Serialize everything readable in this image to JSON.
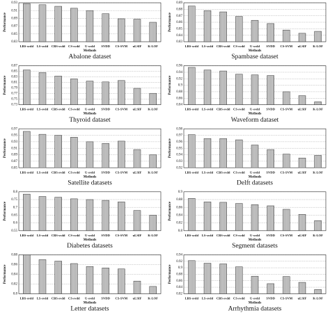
{
  "chart_data": [
    {
      "type": "bar",
      "title": "Abalone dataset",
      "xlabel": "Methods",
      "ylabel": "Performance",
      "color": "#b0b0b0",
      "categories": [
        "LBS-svdd",
        "LS-svdd",
        "CBS-svdd",
        "CS-svdd",
        "U-svdd",
        "SVDD",
        "CS-SVM",
        "uLSIF",
        "K-LOF"
      ],
      "values": [
        0.928,
        0.925,
        0.921,
        0.916,
        0.91,
        0.902,
        0.889,
        0.888,
        0.88
      ],
      "ylim": [
        0.83,
        0.93
      ],
      "yticks": [
        0.83,
        0.85,
        0.87,
        0.89,
        0.91,
        0.93
      ],
      "grid": true
    },
    {
      "type": "bar",
      "title": "Spambase dataset",
      "xlabel": "Methods",
      "ylabel": "Performance",
      "color": "#b0b0b0",
      "categories": [
        "LBS-svdd",
        "LS-svdd",
        "CBS-svdd",
        "CS-svdd",
        "U-svdd",
        "SVDD",
        "CS-SVM",
        "uLSIF",
        "K-LOF"
      ],
      "values": [
        0.885,
        0.878,
        0.876,
        0.869,
        0.863,
        0.858,
        0.848,
        0.843,
        0.846
      ],
      "ylim": [
        0.83,
        0.89
      ],
      "yticks": [
        0.83,
        0.84,
        0.85,
        0.86,
        0.87,
        0.88,
        0.89
      ],
      "grid": true
    },
    {
      "type": "bar",
      "title": "Thyroid dataset",
      "xlabel": "Methods",
      "ylabel": "Performance",
      "color": "#b0b0b0",
      "categories": [
        "LBS-svdd",
        "LS-svdd",
        "CBS-svdd",
        "CS-svdd",
        "U-svdd",
        "SVDD",
        "CS-SVM",
        "uLSIF",
        "K-LOF"
      ],
      "values": [
        0.855,
        0.846,
        0.833,
        0.823,
        0.815,
        0.812,
        0.817,
        0.789,
        0.771
      ],
      "ylim": [
        0.73,
        0.87
      ],
      "yticks": [
        0.73,
        0.75,
        0.77,
        0.79,
        0.81,
        0.83,
        0.85,
        0.87
      ],
      "grid": true
    },
    {
      "type": "bar",
      "title": "Waveform dataset",
      "xlabel": "Methods",
      "ylabel": "Performance",
      "color": "#b0b0b0",
      "categories": [
        "LBS-svdd",
        "LS-svdd",
        "CBS-svdd",
        "CS-svdd",
        "U-svdd",
        "SVDD",
        "CS-SVM",
        "uLSIF",
        "K-LOF"
      ],
      "values": [
        0.955,
        0.947,
        0.944,
        0.934,
        0.932,
        0.93,
        0.88,
        0.868,
        0.849
      ],
      "ylim": [
        0.84,
        0.96
      ],
      "yticks": [
        0.84,
        0.86,
        0.88,
        0.9,
        0.92,
        0.94,
        0.96
      ],
      "grid": true
    },
    {
      "type": "bar",
      "title": "Satellite datasets",
      "xlabel": "Methods",
      "ylabel": "Performance",
      "color": "#b0b0b0",
      "categories": [
        "LBS-svdd",
        "LS-svdd",
        "CBS-svdd",
        "CS-svdd",
        "U-svdd",
        "SVDD",
        "CS-SVM",
        "uLSIF",
        "K-LOF"
      ],
      "values": [
        0.962,
        0.953,
        0.95,
        0.944,
        0.93,
        0.925,
        0.932,
        0.906,
        0.89
      ],
      "ylim": [
        0.85,
        0.97
      ],
      "yticks": [
        0.85,
        0.87,
        0.89,
        0.91,
        0.93,
        0.95,
        0.97
      ],
      "grid": true
    },
    {
      "type": "bar",
      "title": "Delft datasets",
      "xlabel": "Methods",
      "ylabel": "Performance",
      "color": "#b0b0b0",
      "categories": [
        "LBS-svdd",
        "LS-svdd",
        "CBS-svdd",
        "CS-svdd",
        "U-svdd",
        "SVDD",
        "CS-SVM",
        "uLSIF",
        "K-LOF"
      ],
      "values": [
        0.971,
        0.965,
        0.965,
        0.963,
        0.955,
        0.948,
        0.941,
        0.935,
        0.939
      ],
      "ylim": [
        0.92,
        0.98
      ],
      "yticks": [
        0.92,
        0.93,
        0.94,
        0.95,
        0.96,
        0.97,
        0.98
      ],
      "grid": true
    },
    {
      "type": "bar",
      "title": "Diabetes datasets",
      "xlabel": "Methods",
      "ylabel": "Performance",
      "color": "#b0b0b0",
      "categories": [
        "LBS-svdd",
        "LS-svdd",
        "CBS-svdd",
        "CS-svdd",
        "U-svdd",
        "SVDD",
        "CS-SVM",
        "uLSIF",
        "K-LOF"
      ],
      "values": [
        0.785,
        0.77,
        0.765,
        0.755,
        0.75,
        0.745,
        0.735,
        0.68,
        0.65
      ],
      "ylim": [
        0.55,
        0.8
      ],
      "yticks": [
        0.55,
        0.6,
        0.65,
        0.7,
        0.75,
        0.8
      ],
      "grid": true
    },
    {
      "type": "bar",
      "title": "Segment datasets",
      "xlabel": "Methods",
      "ylabel": "Performance",
      "color": "#b0b0b0",
      "categories": [
        "LBS-svdd",
        "LS-svdd",
        "CBS-svdd",
        "CS-svdd",
        "U-svdd",
        "SVDD",
        "CS-SVM",
        "uLSIF",
        "K-LOF"
      ],
      "values": [
        0.883,
        0.874,
        0.873,
        0.87,
        0.867,
        0.864,
        0.855,
        0.842,
        0.826
      ],
      "ylim": [
        0.8,
        0.9
      ],
      "yticks": [
        0.8,
        0.82,
        0.84,
        0.86,
        0.88,
        0.9
      ],
      "grid": true
    },
    {
      "type": "bar",
      "title": "Letter datasets",
      "xlabel": "Methods",
      "ylabel": "Performance",
      "color": "#b0b0b0",
      "categories": [
        "LBS-svdd",
        "LS-svdd",
        "CBS-svdd",
        "CS-svdd",
        "U-svdd",
        "SVDD",
        "CS-SVM",
        "uLSIF",
        "K-LOF"
      ],
      "values": [
        0.88,
        0.87,
        0.867,
        0.862,
        0.856,
        0.853,
        0.851,
        0.826,
        0.815
      ],
      "ylim": [
        0.8,
        0.88
      ],
      "yticks": [
        0.8,
        0.82,
        0.84,
        0.86,
        0.88
      ],
      "grid": true
    },
    {
      "type": "bar",
      "title": "Arrhythmia datasets",
      "xlabel": "Methods",
      "ylabel": "Performance",
      "color": "#b0b0b0",
      "categories": [
        "LBS-svdd",
        "LS-svdd",
        "CBS-svdd",
        "CS-svdd",
        "U-svdd",
        "SVDD",
        "CS-SVM",
        "uLSIF",
        "K-LOF"
      ],
      "values": [
        0.922,
        0.914,
        0.912,
        0.903,
        0.874,
        0.851,
        0.873,
        0.855,
        0.833
      ],
      "ylim": [
        0.82,
        0.94
      ],
      "yticks": [
        0.82,
        0.84,
        0.86,
        0.88,
        0.9,
        0.92,
        0.94
      ],
      "grid": true
    }
  ]
}
